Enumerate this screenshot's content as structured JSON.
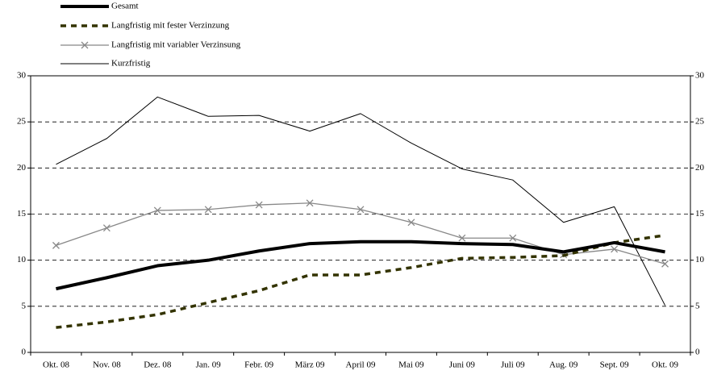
{
  "chart_data": {
    "type": "line",
    "categories": [
      "Okt. 08",
      "Nov. 08",
      "Dez. 08",
      "Jan. 09",
      "Febr. 09",
      "März 09",
      "April 09",
      "Mai 09",
      "Juni 09",
      "Juli 09",
      "Aug. 09",
      "Sept. 09",
      "Okt. 09"
    ],
    "series": [
      {
        "name": "Gesamt",
        "color": "#000000",
        "width": 4,
        "dash": "none",
        "marker": "none",
        "values": [
          6.9,
          8.1,
          9.4,
          10.0,
          11.0,
          11.8,
          12.0,
          12.0,
          11.8,
          11.7,
          10.9,
          11.9,
          10.9
        ]
      },
      {
        "name": "Langfristig mit fester Verzinzung",
        "color": "#333300",
        "width": 3.5,
        "dash": "7 6",
        "marker": "none",
        "values": [
          2.7,
          3.3,
          4.1,
          5.4,
          6.7,
          8.4,
          8.4,
          9.2,
          10.2,
          10.3,
          10.5,
          11.9,
          12.7
        ]
      },
      {
        "name": "Langfristig mit variabler Verzinsung",
        "color": "#888888",
        "width": 1.3,
        "dash": "none",
        "marker": "x",
        "values": [
          11.6,
          13.5,
          15.4,
          15.5,
          16.0,
          16.2,
          15.5,
          14.1,
          12.4,
          12.4,
          10.6,
          11.2,
          9.6
        ]
      },
      {
        "name": "Kurzfristig",
        "color": "#000000",
        "width": 1,
        "dash": "none",
        "marker": "none",
        "values": [
          20.4,
          23.2,
          27.7,
          25.6,
          25.7,
          24.0,
          25.9,
          22.7,
          19.9,
          18.7,
          14.1,
          15.8,
          5.1
        ]
      }
    ],
    "ylim": [
      0,
      30
    ],
    "yticks": [
      0,
      5,
      10,
      15,
      20,
      25,
      30
    ],
    "y2lim": [
      0,
      30
    ],
    "y2ticks": [
      0,
      5,
      10,
      15,
      20,
      25,
      30
    ],
    "grid": true,
    "legend": "top-left"
  }
}
